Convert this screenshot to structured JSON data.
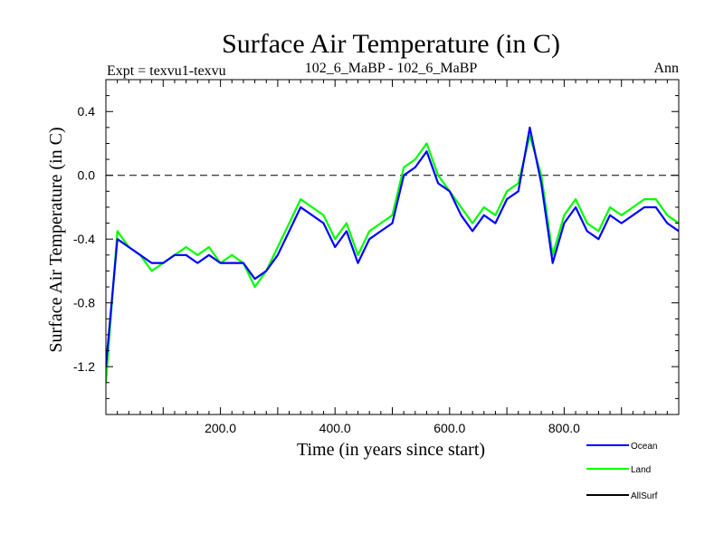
{
  "chart_data": {
    "type": "line",
    "title": "Surface Air Temperature (in C)",
    "subtitle_left": "Expt = texvu1-texvu",
    "subtitle_center": "102_6_MaBP - 102_6_MaBP",
    "subtitle_right": "Ann",
    "xlabel": "Time (in years since start)",
    "ylabel": "Surface Air Temperature (in C)",
    "xlim": [
      0,
      1000
    ],
    "ylim": [
      -1.5,
      0.6
    ],
    "x_ticks": [
      200,
      400,
      600,
      800
    ],
    "x_tick_labels": [
      "200.0",
      "400.0",
      "600.0",
      "800.0"
    ],
    "y_ticks": [
      -1.2,
      -0.8,
      -0.4,
      0.0,
      0.4
    ],
    "y_tick_labels": [
      "-1.2",
      "-0.8",
      "-0.4",
      "0.0",
      "0.4"
    ],
    "reference_line": 0.0,
    "series": [
      {
        "name": "Land",
        "color": "#00ff00",
        "x": [
          0,
          20,
          40,
          60,
          80,
          100,
          120,
          140,
          160,
          180,
          200,
          220,
          240,
          260,
          280,
          300,
          320,
          340,
          360,
          380,
          400,
          420,
          440,
          460,
          480,
          500,
          520,
          540,
          560,
          580,
          600,
          620,
          640,
          660,
          680,
          700,
          720,
          740,
          760,
          780,
          800,
          820,
          840,
          860,
          880,
          900,
          920,
          940,
          960,
          980,
          1000
        ],
        "values": [
          -1.3,
          -0.35,
          -0.45,
          -0.5,
          -0.6,
          -0.55,
          -0.5,
          -0.45,
          -0.5,
          -0.45,
          -0.55,
          -0.5,
          -0.55,
          -0.7,
          -0.6,
          -0.45,
          -0.3,
          -0.15,
          -0.2,
          -0.25,
          -0.4,
          -0.3,
          -0.5,
          -0.35,
          -0.3,
          -0.25,
          0.05,
          0.1,
          0.2,
          0.0,
          -0.1,
          -0.2,
          -0.3,
          -0.2,
          -0.25,
          -0.1,
          -0.05,
          0.25,
          0.0,
          -0.5,
          -0.25,
          -0.15,
          -0.3,
          -0.35,
          -0.2,
          -0.25,
          -0.2,
          -0.15,
          -0.15,
          -0.25,
          -0.3
        ]
      },
      {
        "name": "Ocean",
        "color": "#0000ff",
        "x": [
          0,
          20,
          40,
          60,
          80,
          100,
          120,
          140,
          160,
          180,
          200,
          220,
          240,
          260,
          280,
          300,
          320,
          340,
          360,
          380,
          400,
          420,
          440,
          460,
          480,
          500,
          520,
          540,
          560,
          580,
          600,
          620,
          640,
          660,
          680,
          700,
          720,
          740,
          760,
          780,
          800,
          820,
          840,
          860,
          880,
          900,
          920,
          940,
          960,
          980,
          1000
        ],
        "values": [
          -1.2,
          -0.4,
          -0.45,
          -0.5,
          -0.55,
          -0.55,
          -0.5,
          -0.5,
          -0.55,
          -0.5,
          -0.55,
          -0.55,
          -0.55,
          -0.65,
          -0.6,
          -0.5,
          -0.35,
          -0.2,
          -0.25,
          -0.3,
          -0.45,
          -0.35,
          -0.55,
          -0.4,
          -0.35,
          -0.3,
          0.0,
          0.05,
          0.15,
          -0.05,
          -0.1,
          -0.25,
          -0.35,
          -0.25,
          -0.3,
          -0.15,
          -0.1,
          0.3,
          -0.05,
          -0.55,
          -0.3,
          -0.2,
          -0.35,
          -0.4,
          -0.25,
          -0.3,
          -0.25,
          -0.2,
          -0.2,
          -0.3,
          -0.35
        ]
      },
      {
        "name": "AllSurf",
        "color": "#000000",
        "x": [],
        "values": []
      }
    ],
    "legend": {
      "placement": "bottom-right",
      "entries": [
        {
          "label": "Ocean",
          "color": "#0000ff"
        },
        {
          "label": "Land",
          "color": "#00ff00"
        },
        {
          "label": "AllSurf",
          "color": "#000000"
        }
      ]
    }
  }
}
